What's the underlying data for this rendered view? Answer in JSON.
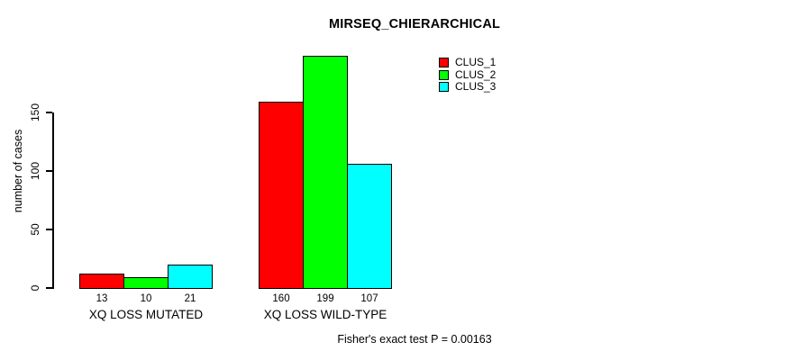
{
  "chart_data": {
    "type": "bar",
    "title": "MIRSEQ_CHIERARCHICAL",
    "ylabel": "number of cases",
    "xlabel": "",
    "categories": [
      "XQ LOSS MUTATED",
      "XQ LOSS WILD-TYPE"
    ],
    "series": [
      {
        "name": "CLUS_1",
        "color": "#ff0000",
        "values": [
          13,
          160
        ]
      },
      {
        "name": "CLUS_2",
        "color": "#00ff00",
        "values": [
          10,
          199
        ]
      },
      {
        "name": "CLUS_3",
        "color": "#00ffff",
        "values": [
          21,
          107
        ]
      }
    ],
    "yticks": [
      0,
      50,
      100,
      150
    ],
    "ylim": [
      0,
      210
    ],
    "grid": false,
    "legend_position": "top-right",
    "bar_value_labels_shown": true,
    "annotation": "Fisher's exact test P = 0.00163",
    "colors": {
      "background": "#ffffff",
      "text": "#000000",
      "bar_border": "#000000"
    }
  }
}
